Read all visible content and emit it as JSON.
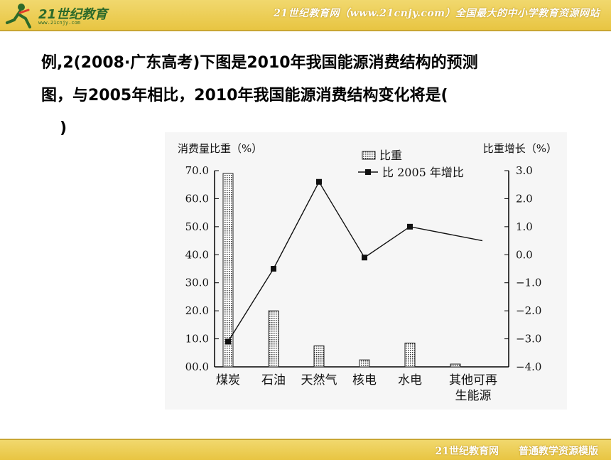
{
  "header": {
    "logo_text": "21世纪教育",
    "logo_url": "www.21cnjy.com",
    "slogan": "21世纪教育网（www.21cnjy.com）全国最大的中小学教育资源网站"
  },
  "question": {
    "line1": "例,2(2008·广东高考)下图是2010年我国能源消费结构的预测",
    "line2": "图，与2005年相比，2010年我国能源消费结构变化将是(",
    "line3": ")"
  },
  "chart_data": {
    "type": "bar",
    "ylabel_left": "消费量比重（%）",
    "ylabel_right": "比重增长（%）",
    "categories": [
      "煤炭",
      "石油",
      "天然气",
      "核电",
      "水电",
      "其他可再生能源"
    ],
    "category_lines": [
      [
        "煤炭"
      ],
      [
        "石油"
      ],
      [
        "天然气"
      ],
      [
        "核电"
      ],
      [
        "水电"
      ],
      [
        "其他可再",
        "生能源"
      ]
    ],
    "series": [
      {
        "name": "比重",
        "kind": "bar",
        "axis": "left",
        "values": [
          69.0,
          20.0,
          7.5,
          2.5,
          8.5,
          1.0
        ]
      },
      {
        "name": "比 2005 年增比",
        "kind": "line",
        "axis": "right",
        "values": [
          -3.1,
          -0.5,
          2.6,
          -0.1,
          1.0,
          0.5
        ]
      }
    ],
    "ylim_left": [
      0,
      70
    ],
    "ylim_right": [
      -4,
      3
    ],
    "yticks_left": [
      "00.0",
      "10.0",
      "20.0",
      "30.0",
      "40.0",
      "50.0",
      "60.0",
      "70.0"
    ],
    "yticks_right": [
      "−4.0",
      "−3.0",
      "−2.0",
      "−1.0",
      "0.0",
      "1.0",
      "2.0",
      "3.0"
    ],
    "legend_position": "top-right",
    "grid": false
  },
  "footer": {
    "text": "21世纪教育网　　普通教学资源模版"
  }
}
